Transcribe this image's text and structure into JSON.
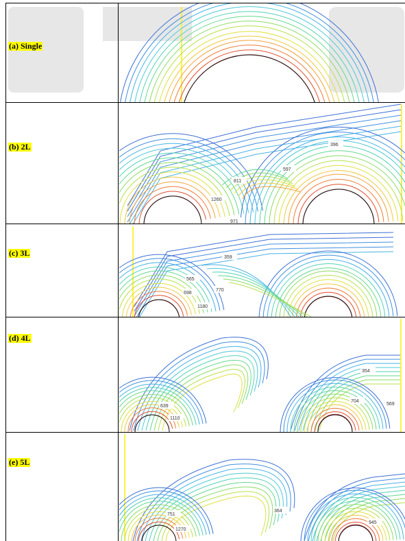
{
  "rows": [
    {
      "label": "(a) Single",
      "contour_labels": []
    },
    {
      "label": "(b) 2L",
      "contour_labels": [
        "396",
        "597",
        "811",
        "1260",
        "971"
      ]
    },
    {
      "label": "(c) 3L",
      "contour_labels": [
        "359",
        "565",
        "698",
        "770",
        "1180"
      ]
    },
    {
      "label": "(d) 4L",
      "contour_labels": [
        "354",
        "639",
        "1110",
        "704",
        "569"
      ]
    },
    {
      "label": "(e) 5L",
      "contour_labels": [
        "751",
        "1270",
        "364",
        "945"
      ]
    }
  ],
  "colors": {
    "label_highlight": "#ffff00",
    "frame_border": "#000000",
    "guide_line": "#ffff00",
    "watermark": "#e7e7e7"
  }
}
